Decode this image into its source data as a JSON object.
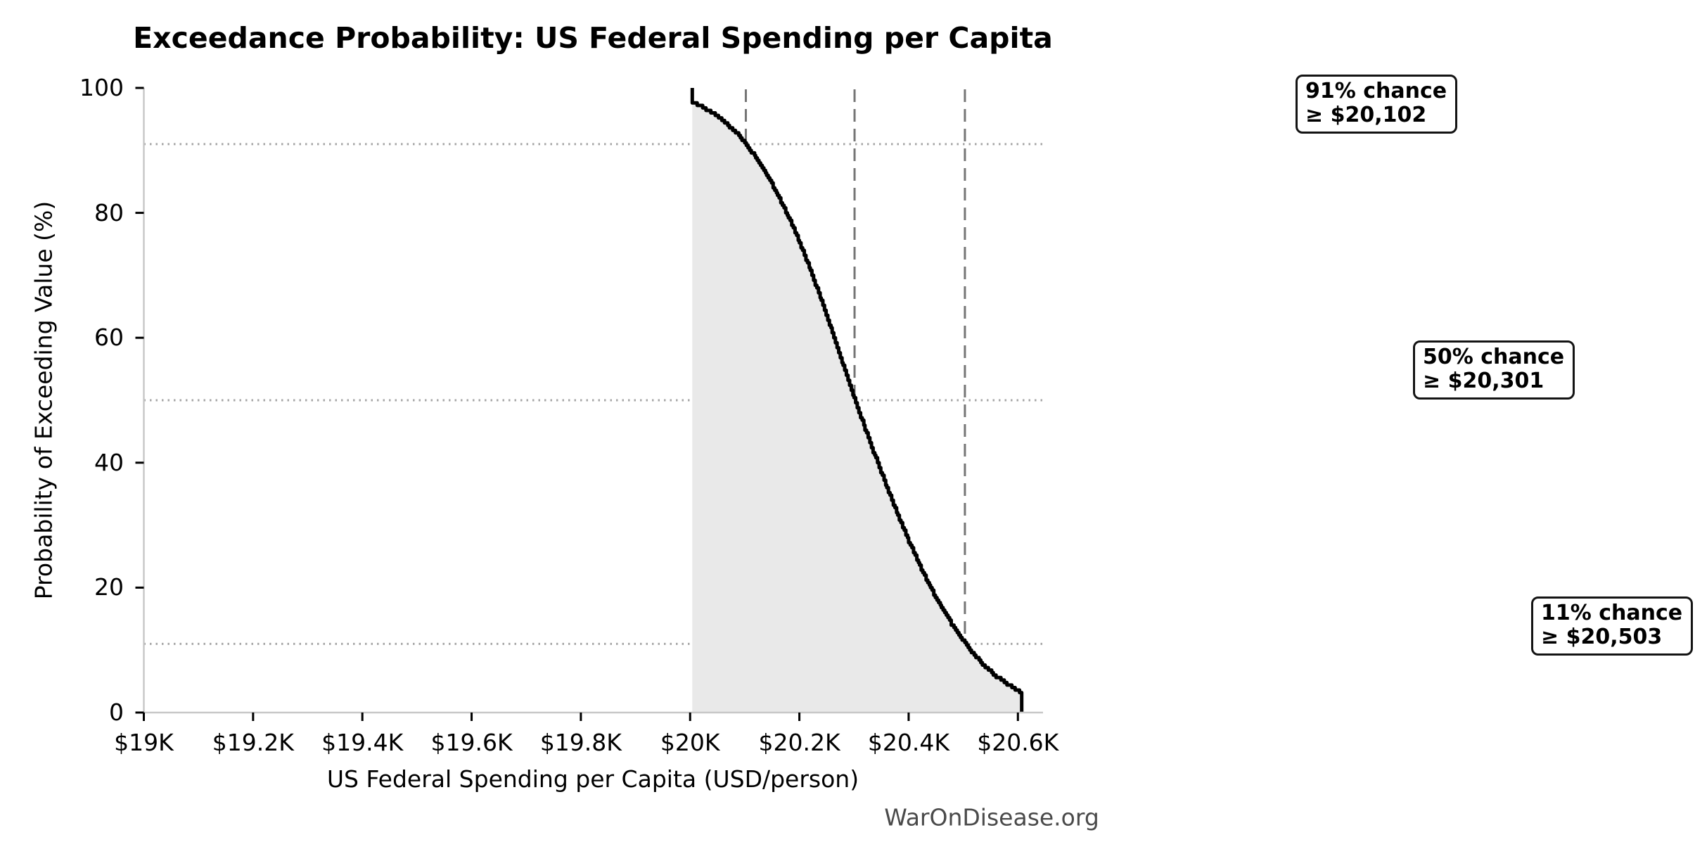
{
  "chart_data": {
    "type": "area",
    "title": "Exceedance Probability: US Federal Spending per Capita",
    "xlabel": "US Federal Spending per Capita (USD/person)",
    "ylabel": "Probability of Exceeding Value (%)",
    "watermark": "WarOnDisease.org",
    "xlim": [
      19000,
      20646
    ],
    "ylim": [
      0,
      100
    ],
    "x_ticks": [
      19000,
      19200,
      19400,
      19600,
      19800,
      20000,
      20200,
      20400,
      20600
    ],
    "x_tick_labels": [
      "$19K",
      "$19.2K",
      "$19.4K",
      "$19.6K",
      "$19.8K",
      "$20K",
      "$20.2K",
      "$20.4K",
      "$20.6K"
    ],
    "y_ticks": [
      0,
      20,
      40,
      60,
      80,
      100
    ],
    "y_tick_labels": [
      "0",
      "20",
      "40",
      "60",
      "80",
      "100"
    ],
    "h_dotted_lines_pct": [
      91,
      50,
      11
    ],
    "v_dashed_lines_usd": [
      20102,
      20301,
      20503
    ],
    "grid": "reference lines only",
    "legend": "none",
    "curve_points": [
      [
        20004,
        100
      ],
      [
        20004,
        97.7
      ],
      [
        20020,
        97.0
      ],
      [
        20040,
        96.1
      ],
      [
        20060,
        94.7
      ],
      [
        20080,
        93.2
      ],
      [
        20100,
        91.3
      ],
      [
        20120,
        88.8
      ],
      [
        20140,
        86.1
      ],
      [
        20160,
        82.9
      ],
      [
        20180,
        79.2
      ],
      [
        20200,
        75.2
      ],
      [
        20220,
        70.7
      ],
      [
        20240,
        66.0
      ],
      [
        20260,
        60.9
      ],
      [
        20280,
        55.6
      ],
      [
        20300,
        50.3
      ],
      [
        20320,
        45.4
      ],
      [
        20340,
        40.6
      ],
      [
        20360,
        36.0
      ],
      [
        20380,
        31.6
      ],
      [
        20400,
        27.4
      ],
      [
        20420,
        23.5
      ],
      [
        20440,
        19.9
      ],
      [
        20460,
        16.7
      ],
      [
        20480,
        13.9
      ],
      [
        20500,
        11.4
      ],
      [
        20520,
        9.2
      ],
      [
        20540,
        7.3
      ],
      [
        20560,
        5.8
      ],
      [
        20580,
        4.5
      ],
      [
        20600,
        3.5
      ],
      [
        20607,
        3.2
      ],
      [
        20607,
        0
      ]
    ],
    "colors": {
      "curve": "#000000",
      "fill": "#e9e9e9",
      "dashed_line": "#757575",
      "dotted_line": "#a6a6a6",
      "spine": "#c8c8c8",
      "tick": "#000000",
      "watermark": "#4a4a4a"
    },
    "annotations": [
      {
        "line1": "91% chance",
        "line2": "≥ $20,102"
      },
      {
        "line1": "50% chance",
        "line2": "≥ $20,301"
      },
      {
        "line1": "11% chance",
        "line2": "≥ $20,503"
      }
    ]
  }
}
